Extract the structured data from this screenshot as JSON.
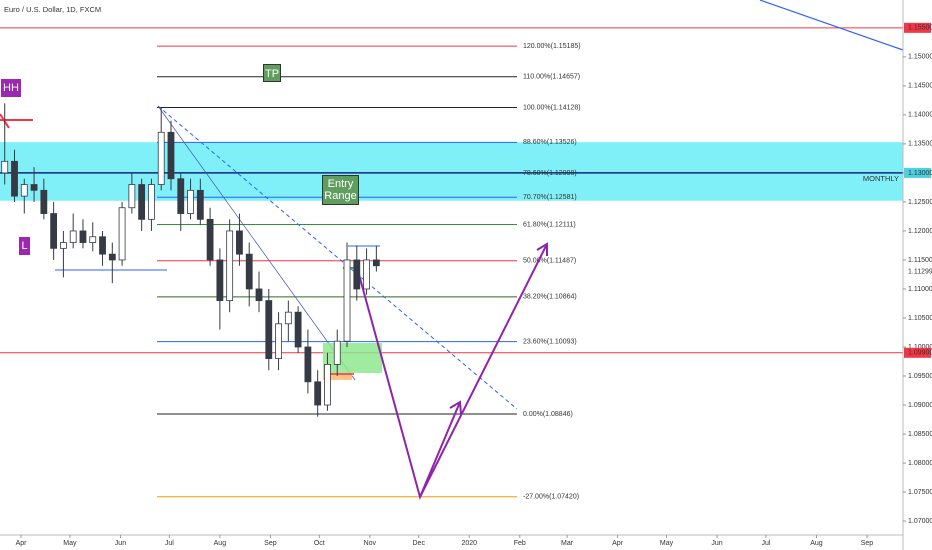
{
  "chart_data": {
    "type": "candlestick",
    "title": "Euro / U.S. Dollar, 1D, FXCM",
    "x": [
      -10,
      -4,
      2,
      8,
      14,
      20,
      26,
      32,
      38,
      44,
      50,
      56,
      62,
      68,
      74,
      80,
      86,
      92,
      98,
      104,
      110,
      116,
      122,
      128,
      134,
      140,
      146,
      152,
      158,
      164,
      170,
      176,
      182,
      188,
      194,
      200,
      206,
      212,
      218
    ],
    "open": [
      1.13,
      1.132,
      1.126,
      1.128,
      1.127,
      1.123,
      1.117,
      1.118,
      1.12,
      1.118,
      1.119,
      1.116,
      1.115,
      1.124,
      1.128,
      1.122,
      1.128,
      1.137,
      1.129,
      1.123,
      1.127,
      1.122,
      1.115,
      1.108,
      1.12,
      1.116,
      1.11,
      1.108,
      1.098,
      1.104,
      1.106,
      1.1,
      1.094,
      1.09,
      1.097,
      1.101,
      1.115,
      1.11,
      1.115
    ],
    "high": [
      1.142,
      1.134,
      1.129,
      1.131,
      1.129,
      1.125,
      1.12,
      1.123,
      1.122,
      1.1215,
      1.12,
      1.118,
      1.125,
      1.13,
      1.129,
      1.129,
      1.1412,
      1.139,
      1.13,
      1.129,
      1.129,
      1.124,
      1.117,
      1.122,
      1.123,
      1.118,
      1.113,
      1.11,
      1.106,
      1.108,
      1.107,
      1.103,
      1.096,
      1.099,
      1.103,
      1.118,
      1.1175,
      1.117,
      1.1175
    ],
    "low": [
      1.128,
      1.125,
      1.123,
      1.125,
      1.122,
      1.115,
      1.112,
      1.117,
      1.117,
      1.1165,
      1.114,
      1.111,
      1.114,
      1.123,
      1.12,
      1.12,
      1.127,
      1.127,
      1.12,
      1.122,
      1.121,
      1.114,
      1.103,
      1.106,
      1.114,
      1.107,
      1.106,
      1.096,
      1.096,
      1.101,
      1.099,
      1.092,
      1.088,
      1.089,
      1.095,
      1.1,
      1.108,
      1.109,
      1.113
    ],
    "close": [
      1.132,
      1.126,
      1.128,
      1.127,
      1.123,
      1.117,
      1.118,
      1.12,
      1.118,
      1.119,
      1.116,
      1.115,
      1.124,
      1.128,
      1.122,
      1.128,
      1.137,
      1.129,
      1.123,
      1.127,
      1.122,
      1.115,
      1.108,
      1.12,
      1.116,
      1.11,
      1.108,
      1.098,
      1.104,
      1.106,
      1.1,
      1.094,
      1.09,
      1.097,
      1.101,
      1.115,
      1.11,
      1.115,
      1.114
    ],
    "up_color": "#ffffff",
    "down_color": "#363a45",
    "xlim": [
      -12.9,
      541.1
    ],
    "xticks": [
      {
        "value": 0,
        "label": "Apr"
      },
      {
        "value": 30,
        "label": "May"
      },
      {
        "value": 61,
        "label": "Jun"
      },
      {
        "value": 91,
        "label": "Jul"
      },
      {
        "value": 122,
        "label": "Aug"
      },
      {
        "value": 153,
        "label": "Sep"
      },
      {
        "value": 183,
        "label": "Oct"
      },
      {
        "value": 214,
        "label": "Nov"
      },
      {
        "value": 244,
        "label": "Dec"
      },
      {
        "value": 275,
        "label": "2020"
      },
      {
        "value": 306,
        "label": "Feb"
      },
      {
        "value": 335,
        "label": "Mar"
      },
      {
        "value": 366,
        "label": "Apr"
      },
      {
        "value": 396,
        "label": "May"
      },
      {
        "value": 427,
        "label": "Jun"
      },
      {
        "value": 457,
        "label": "Jul"
      },
      {
        "value": 488,
        "label": "Aug"
      },
      {
        "value": 519,
        "label": "Sep"
      }
    ],
    "ylim": [
      1.0676,
      1.1598
    ],
    "yticks": [
      {
        "value": 1.07,
        "label": "1.07000"
      },
      {
        "value": 1.075,
        "label": "1.07500"
      },
      {
        "value": 1.08,
        "label": "1.08000"
      },
      {
        "value": 1.085,
        "label": "1.08500"
      },
      {
        "value": 1.09,
        "label": "1.09000"
      },
      {
        "value": 1.095,
        "label": "1.09500"
      },
      {
        "value": 1.1,
        "label": "1.10000"
      },
      {
        "value": 1.105,
        "label": "1.10500"
      },
      {
        "value": 1.11,
        "label": "1.11000"
      },
      {
        "value": 1.115,
        "label": "1.11500"
      },
      {
        "value": 1.12,
        "label": "1.12000"
      },
      {
        "value": 1.125,
        "label": "1.12500"
      },
      {
        "value": 1.13,
        "label": "1.13000"
      },
      {
        "value": 1.135,
        "label": "1.13500"
      },
      {
        "value": 1.14,
        "label": "1.14000"
      },
      {
        "value": 1.145,
        "label": "1.14500"
      },
      {
        "value": 1.15,
        "label": "1.15000"
      }
    ],
    "grid": false,
    "fib_levels": [
      {
        "label": "120.00%(1.15185)",
        "price": 1.15185,
        "color": "#f23645"
      },
      {
        "label": "110.00%(1.14657)",
        "price": 1.14657,
        "color": "#222222"
      },
      {
        "label": "100.00%(1.14128)",
        "price": 1.14128,
        "color": "#222222"
      },
      {
        "label": "88.60%(1.13526)",
        "price": 1.13526,
        "color": "#2962ff"
      },
      {
        "label": "78.60%(1.12998)",
        "price": 1.12998,
        "color": "#1a237e"
      },
      {
        "label": "70.70%(1.12581)",
        "price": 1.12581,
        "color": "#2962ff"
      },
      {
        "label": "61.80%(1.12111)",
        "price": 1.12111,
        "color": "#388e3c"
      },
      {
        "label": "50.00%(1.11487)",
        "price": 1.11487,
        "color": "#f23645"
      },
      {
        "label": "38.20%(1.10864)",
        "price": 1.10864,
        "color": "#33691e"
      },
      {
        "label": "23.60%(1.10093)",
        "price": 1.10093,
        "color": "#2962ff"
      },
      {
        "label": "0.00%(1.08846)",
        "price": 1.08846,
        "color": "#222222"
      },
      {
        "label": "-27.00%(1.07420)",
        "price": 1.0742,
        "color": "#ff9800"
      }
    ],
    "price_lines": [
      {
        "value": 1.155,
        "label": "1.15500",
        "color": "#f23645"
      },
      {
        "value": 1.099,
        "label": "1.09900",
        "color": "#f23645"
      }
    ],
    "zone": {
      "top": 1.1353,
      "bottom": 1.1252,
      "label": "MONTHLY",
      "color": "#80f0f8",
      "line": {
        "value": 1.13,
        "label": "1.13000",
        "color": "#1a237e"
      }
    },
    "current_price": {
      "value": 1.11299,
      "label": "1.11299"
    },
    "annotations": [
      "HH",
      "L",
      "TP",
      "Entry Range"
    ]
  }
}
